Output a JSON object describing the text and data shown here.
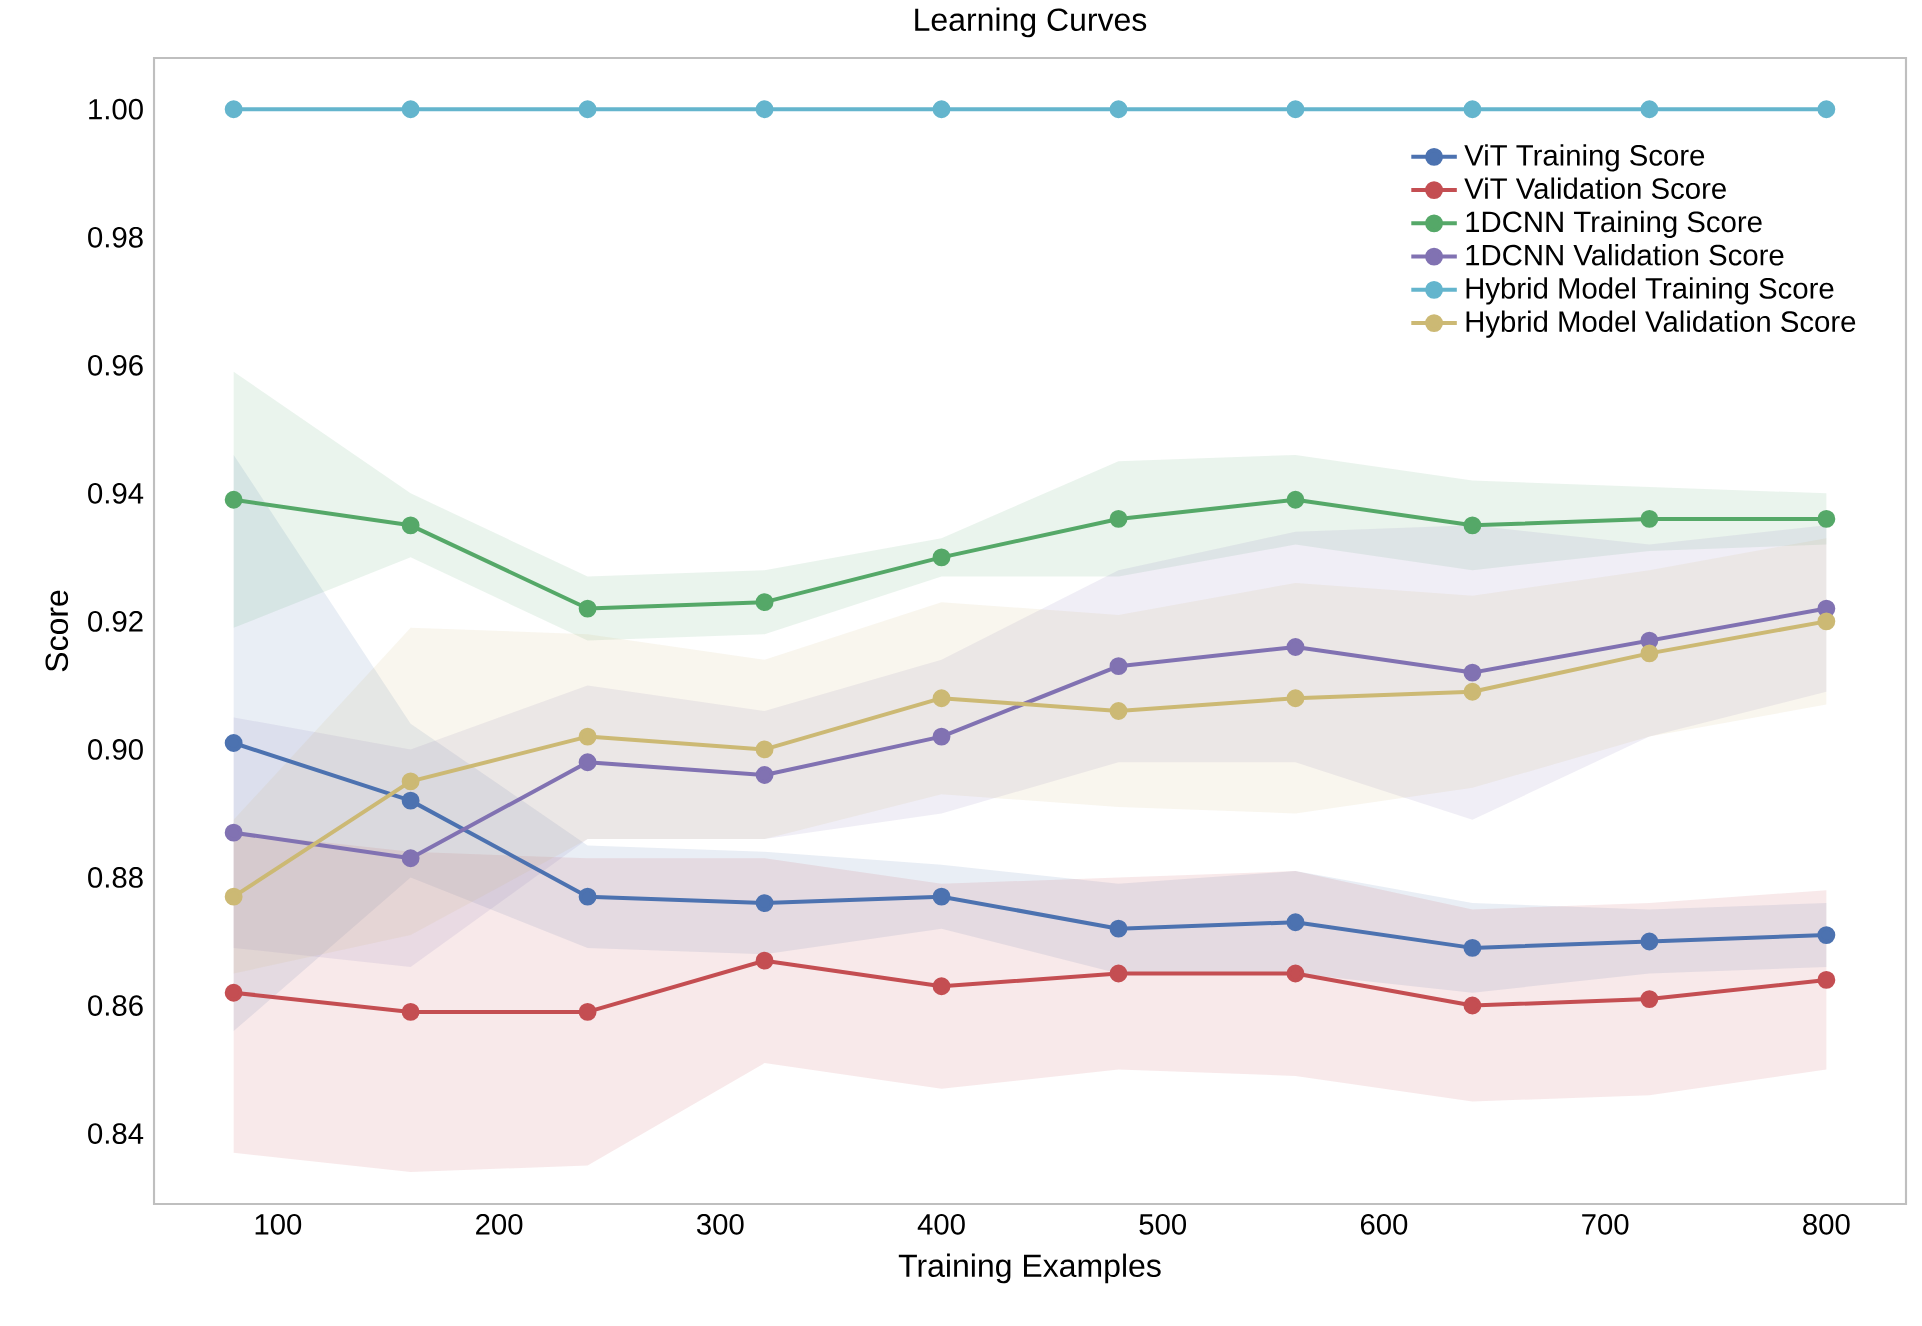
{
  "chart_data": {
    "type": "line",
    "title": "Learning Curves",
    "xlabel": "Training Examples",
    "ylabel": "Score",
    "x": [
      80,
      160,
      240,
      320,
      400,
      480,
      560,
      640,
      720,
      800
    ],
    "xlim": [
      44,
      836
    ],
    "ylim": [
      0.829,
      1.008
    ],
    "xticks": [
      100,
      200,
      300,
      400,
      500,
      600,
      700,
      800
    ],
    "yticks": [
      {
        "value": 0.84,
        "label": "0.84"
      },
      {
        "value": 0.86,
        "label": "0.86"
      },
      {
        "value": 0.88,
        "label": "0.88"
      },
      {
        "value": 0.9,
        "label": "0.90"
      },
      {
        "value": 0.92,
        "label": "0.92"
      },
      {
        "value": 0.94,
        "label": "0.94"
      },
      {
        "value": 0.96,
        "label": "0.96"
      },
      {
        "value": 0.98,
        "label": "0.98"
      },
      {
        "value": 1.0,
        "label": "1.00"
      }
    ],
    "legend": "top right",
    "marker": "circle",
    "series": [
      {
        "name": "ViT Training Score",
        "color": "#4c72b0",
        "values": [
          0.901,
          0.892,
          0.877,
          0.876,
          0.877,
          0.872,
          0.873,
          0.869,
          0.87,
          0.871
        ],
        "lower": [
          0.856,
          0.88,
          0.869,
          0.868,
          0.872,
          0.865,
          0.865,
          0.862,
          0.865,
          0.866
        ],
        "upper": [
          0.946,
          0.904,
          0.885,
          0.884,
          0.882,
          0.879,
          0.881,
          0.876,
          0.875,
          0.876
        ]
      },
      {
        "name": "ViT Validation Score",
        "color": "#c44e52",
        "values": [
          0.862,
          0.859,
          0.859,
          0.867,
          0.863,
          0.865,
          0.865,
          0.86,
          0.861,
          0.864
        ],
        "lower": [
          0.837,
          0.834,
          0.835,
          0.851,
          0.847,
          0.85,
          0.849,
          0.845,
          0.846,
          0.85
        ],
        "upper": [
          0.887,
          0.884,
          0.883,
          0.883,
          0.879,
          0.88,
          0.881,
          0.875,
          0.876,
          0.878
        ]
      },
      {
        "name": "1DCNN Training Score",
        "color": "#55a868",
        "values": [
          0.939,
          0.935,
          0.922,
          0.923,
          0.93,
          0.936,
          0.939,
          0.935,
          0.936,
          0.936
        ],
        "lower": [
          0.919,
          0.93,
          0.917,
          0.918,
          0.927,
          0.927,
          0.932,
          0.928,
          0.931,
          0.932
        ],
        "upper": [
          0.959,
          0.94,
          0.927,
          0.928,
          0.933,
          0.945,
          0.946,
          0.942,
          0.941,
          0.94
        ]
      },
      {
        "name": "1DCNN Validation Score",
        "color": "#8172b2",
        "values": [
          0.887,
          0.883,
          0.898,
          0.896,
          0.902,
          0.913,
          0.916,
          0.912,
          0.917,
          0.922
        ],
        "lower": [
          0.869,
          0.866,
          0.886,
          0.886,
          0.89,
          0.898,
          0.898,
          0.889,
          0.902,
          0.909
        ],
        "upper": [
          0.905,
          0.9,
          0.91,
          0.906,
          0.914,
          0.928,
          0.934,
          0.935,
          0.932,
          0.935
        ]
      },
      {
        "name": "Hybrid Model Training Score",
        "color": "#64b5cd",
        "values": [
          1.0,
          1.0,
          1.0,
          1.0,
          1.0,
          1.0,
          1.0,
          1.0,
          1.0,
          1.0
        ]
      },
      {
        "name": "Hybrid Model Validation Score",
        "color": "#ccb974",
        "values": [
          0.877,
          0.895,
          0.902,
          0.9,
          0.908,
          0.906,
          0.908,
          0.909,
          0.915,
          0.92
        ],
        "lower": [
          0.865,
          0.871,
          0.886,
          0.886,
          0.893,
          0.891,
          0.89,
          0.894,
          0.902,
          0.907
        ],
        "upper": [
          0.889,
          0.919,
          0.918,
          0.914,
          0.923,
          0.921,
          0.926,
          0.924,
          0.928,
          0.933
        ]
      }
    ]
  }
}
